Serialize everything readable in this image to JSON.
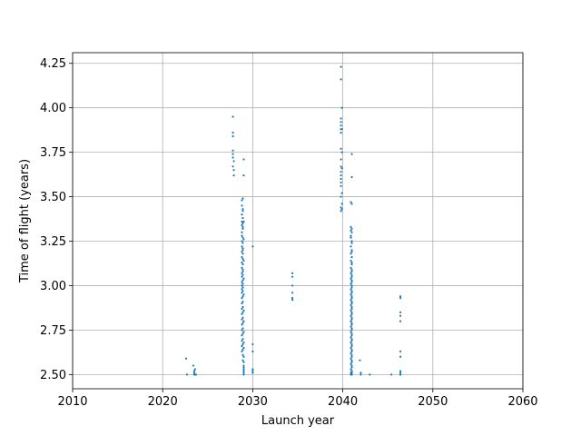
{
  "chart_data": {
    "type": "scatter",
    "title": "",
    "xlabel": "Launch year",
    "ylabel": "Time of flight (years)",
    "xlim": [
      2010,
      2060
    ],
    "ylim": [
      2.42,
      4.31
    ],
    "xticks": [
      2010,
      2020,
      2030,
      2040,
      2050,
      2060
    ],
    "yticks": [
      2.5,
      2.75,
      3.0,
      3.25,
      3.5,
      3.75,
      4.0,
      4.25
    ],
    "ytick_labels": [
      "2.50",
      "2.75",
      "3.00",
      "3.25",
      "3.50",
      "3.75",
      "4.00",
      "4.25"
    ],
    "grid": true,
    "marker_color": "#1f77b4",
    "series": [
      {
        "x": [
          2022.6,
          2022.7,
          2023.4,
          2023.5,
          2023.5,
          2023.5,
          2023.6,
          2023.6,
          2023.7,
          2027.8,
          2027.8,
          2027.8,
          2027.8,
          2027.8,
          2027.8,
          2027.8,
          2027.9,
          2027.9,
          2027.9,
          2028.8,
          2028.8,
          2028.8,
          2028.8,
          2028.8,
          2028.8,
          2028.8,
          2028.8,
          2028.8,
          2028.8,
          2028.8,
          2028.8,
          2028.8,
          2028.8,
          2028.8,
          2028.8,
          2028.8,
          2028.8,
          2028.8,
          2028.8,
          2028.8,
          2028.8,
          2028.8,
          2028.8,
          2028.8,
          2028.8,
          2028.8,
          2028.8,
          2028.8,
          2028.8,
          2028.9,
          2028.9,
          2028.9,
          2028.9,
          2028.9,
          2028.9,
          2028.9,
          2028.9,
          2028.9,
          2028.9,
          2028.9,
          2028.9,
          2028.9,
          2028.9,
          2028.9,
          2028.9,
          2028.9,
          2028.9,
          2028.9,
          2028.9,
          2028.9,
          2028.9,
          2028.9,
          2028.9,
          2028.9,
          2028.9,
          2028.9,
          2028.9,
          2028.9,
          2028.9,
          2029.0,
          2029.0,
          2029.0,
          2029.0,
          2029.0,
          2029.0,
          2029.0,
          2029.0,
          2029.0,
          2029.0,
          2029.0,
          2029.0,
          2029.0,
          2029.0,
          2029.0,
          2029.0,
          2029.0,
          2029.0,
          2029.0,
          2029.0,
          2028.9,
          2028.9,
          2028.9,
          2028.9,
          2030.0,
          2030.0,
          2030.0,
          2030.0,
          2030.0,
          2030.0,
          2034.4,
          2034.4,
          2034.4,
          2034.4,
          2034.4,
          2034.4,
          2039.8,
          2039.8,
          2039.8,
          2039.8,
          2039.8,
          2039.8,
          2039.8,
          2039.8,
          2039.8,
          2039.8,
          2039.8,
          2039.8,
          2039.8,
          2039.8,
          2039.8,
          2039.8,
          2039.8,
          2039.8,
          2039.9,
          2039.9,
          2039.9,
          2039.9,
          2039.9,
          2039.9,
          2039.9,
          2040.9,
          2040.9,
          2040.9,
          2040.9,
          2040.9,
          2040.9,
          2040.9,
          2040.9,
          2040.9,
          2040.9,
          2040.9,
          2040.9,
          2040.9,
          2040.9,
          2040.9,
          2040.9,
          2040.9,
          2040.9,
          2040.9,
          2040.9,
          2040.9,
          2040.9,
          2040.9,
          2040.9,
          2040.9,
          2040.9,
          2040.9,
          2040.9,
          2040.9,
          2040.9,
          2041.0,
          2041.0,
          2041.0,
          2041.0,
          2041.0,
          2041.0,
          2041.0,
          2041.0,
          2041.0,
          2041.0,
          2041.0,
          2041.0,
          2041.0,
          2041.0,
          2041.0,
          2041.0,
          2041.0,
          2041.0,
          2041.0,
          2041.0,
          2041.0,
          2041.0,
          2041.0,
          2041.0,
          2041.0,
          2041.0,
          2041.0,
          2041.0,
          2041.0,
          2041.0,
          2041.0,
          2041.0,
          2041.0,
          2041.0,
          2041.0,
          2041.0,
          2041.0,
          2041.0,
          2041.0,
          2041.0,
          2041.0,
          2041.0,
          2041.0,
          2041.0,
          2041.0,
          2041.0,
          2041.0,
          2041.0,
          2041.0,
          2041.0,
          2041.0,
          2041.0,
          2041.0,
          2041.0,
          2041.0,
          2041.9,
          2042.0,
          2042.0,
          2043.0,
          2045.4,
          2046.4,
          2046.4,
          2046.4,
          2046.4,
          2046.4,
          2046.4,
          2046.4,
          2046.4,
          2046.4,
          2046.4,
          2046.4
        ],
        "y": [
          2.59,
          2.5,
          2.55,
          2.52,
          2.51,
          2.5,
          2.53,
          2.5,
          2.5,
          3.95,
          3.86,
          3.84,
          3.76,
          3.74,
          3.72,
          3.67,
          3.65,
          3.62,
          3.7,
          3.48,
          3.45,
          3.4,
          3.36,
          3.34,
          3.3,
          3.28,
          3.25,
          3.22,
          3.19,
          3.16,
          3.13,
          3.1,
          3.07,
          3.05,
          3.02,
          3.0,
          2.98,
          2.96,
          2.93,
          2.9,
          2.87,
          2.84,
          2.81,
          2.78,
          2.75,
          2.72,
          2.69,
          2.66,
          2.63,
          3.49,
          3.43,
          3.38,
          3.35,
          3.32,
          3.27,
          3.24,
          3.21,
          3.18,
          3.15,
          3.12,
          3.09,
          3.06,
          3.03,
          3.01,
          2.99,
          2.97,
          2.94,
          2.91,
          2.88,
          2.85,
          2.82,
          2.79,
          2.76,
          2.73,
          2.7,
          2.67,
          2.64,
          2.61,
          2.58,
          3.71,
          3.62,
          3.36,
          3.26,
          3.14,
          3.04,
          2.95,
          2.86,
          2.8,
          2.74,
          2.68,
          2.65,
          2.6,
          2.57,
          2.55,
          2.54,
          2.53,
          2.52,
          2.51,
          2.5,
          3.42,
          3.33,
          3.2,
          3.08,
          3.22,
          2.67,
          2.63,
          2.53,
          2.52,
          2.51,
          3.07,
          3.05,
          3.0,
          2.96,
          2.93,
          2.92,
          4.23,
          4.16,
          3.94,
          3.92,
          3.9,
          3.88,
          3.86,
          3.77,
          3.71,
          3.67,
          3.64,
          3.62,
          3.58,
          3.56,
          3.5,
          3.44,
          3.42,
          3.6,
          3.75,
          3.88,
          4.0,
          3.66,
          3.52,
          3.46,
          3.43,
          3.33,
          3.31,
          3.27,
          3.22,
          3.18,
          3.14,
          3.1,
          3.07,
          3.04,
          3.01,
          2.98,
          2.95,
          2.92,
          2.89,
          2.86,
          2.83,
          2.8,
          2.77,
          2.74,
          2.71,
          2.68,
          2.65,
          2.62,
          2.59,
          2.56,
          2.53,
          2.51,
          2.5,
          3.47,
          3.28,
          3.74,
          3.61,
          3.46,
          3.3,
          3.25,
          3.2,
          3.16,
          3.12,
          3.09,
          3.06,
          3.03,
          3.0,
          2.97,
          2.94,
          2.91,
          2.88,
          2.85,
          2.82,
          2.79,
          2.76,
          2.73,
          2.7,
          2.67,
          2.64,
          2.61,
          2.58,
          2.55,
          2.52,
          2.51,
          2.5,
          3.32,
          3.24,
          3.19,
          3.13,
          3.08,
          3.02,
          2.96,
          2.9,
          2.84,
          2.78,
          2.72,
          2.66,
          2.6,
          2.54,
          2.52,
          2.5,
          3.05,
          2.99,
          2.93,
          2.87,
          2.81,
          2.75,
          2.69,
          2.63,
          2.57,
          2.58,
          2.51,
          2.5,
          2.5,
          2.5,
          2.94,
          2.93,
          2.85,
          2.83,
          2.8,
          2.63,
          2.6,
          2.52,
          2.51,
          2.5,
          2.5
        ]
      }
    ]
  }
}
